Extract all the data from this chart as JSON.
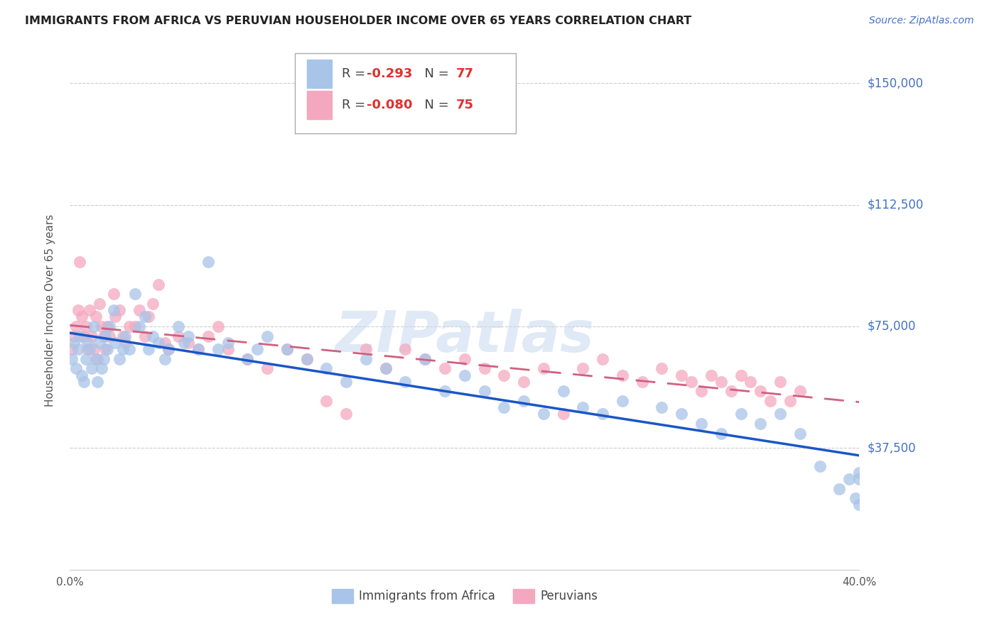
{
  "title": "IMMIGRANTS FROM AFRICA VS PERUVIAN HOUSEHOLDER INCOME OVER 65 YEARS CORRELATION CHART",
  "source": "Source: ZipAtlas.com",
  "ylabel": "Householder Income Over 65 years",
  "xlim": [
    0.0,
    0.4
  ],
  "ylim": [
    0,
    160000
  ],
  "yticks": [
    0,
    37500,
    75000,
    112500,
    150000
  ],
  "ytick_labels": [
    "",
    "$37,500",
    "$75,000",
    "$112,500",
    "$150,000"
  ],
  "xticks": [
    0.0,
    0.05,
    0.1,
    0.15,
    0.2,
    0.25,
    0.3,
    0.35,
    0.4
  ],
  "xtick_labels": [
    "0.0%",
    "",
    "",
    "",
    "",
    "",
    "",
    "",
    "40.0%"
  ],
  "blue_color": "#a8c4e8",
  "pink_color": "#f4a8c0",
  "line_blue": "#1a56c8",
  "line_pink": "#d06080",
  "watermark": "ZIPatlas",
  "africa_x": [
    0.001,
    0.002,
    0.003,
    0.004,
    0.005,
    0.006,
    0.007,
    0.008,
    0.009,
    0.01,
    0.011,
    0.012,
    0.013,
    0.014,
    0.015,
    0.016,
    0.017,
    0.018,
    0.019,
    0.02,
    0.022,
    0.023,
    0.025,
    0.027,
    0.028,
    0.03,
    0.033,
    0.035,
    0.038,
    0.04,
    0.042,
    0.045,
    0.048,
    0.05,
    0.055,
    0.058,
    0.06,
    0.065,
    0.07,
    0.075,
    0.08,
    0.09,
    0.095,
    0.1,
    0.11,
    0.12,
    0.13,
    0.14,
    0.15,
    0.16,
    0.17,
    0.18,
    0.19,
    0.2,
    0.21,
    0.22,
    0.23,
    0.24,
    0.25,
    0.26,
    0.27,
    0.28,
    0.3,
    0.31,
    0.32,
    0.33,
    0.34,
    0.35,
    0.36,
    0.37,
    0.38,
    0.39,
    0.395,
    0.398,
    0.4,
    0.4,
    0.4
  ],
  "africa_y": [
    65000,
    70000,
    62000,
    68000,
    72000,
    60000,
    58000,
    65000,
    70000,
    68000,
    62000,
    75000,
    65000,
    58000,
    70000,
    62000,
    65000,
    72000,
    68000,
    75000,
    80000,
    70000,
    65000,
    68000,
    72000,
    68000,
    85000,
    75000,
    78000,
    68000,
    72000,
    70000,
    65000,
    68000,
    75000,
    70000,
    72000,
    68000,
    95000,
    68000,
    70000,
    65000,
    68000,
    72000,
    68000,
    65000,
    62000,
    58000,
    65000,
    62000,
    58000,
    65000,
    55000,
    60000,
    55000,
    50000,
    52000,
    48000,
    55000,
    50000,
    48000,
    52000,
    50000,
    48000,
    45000,
    42000,
    48000,
    45000,
    48000,
    42000,
    32000,
    25000,
    28000,
    22000,
    20000,
    30000,
    28000
  ],
  "peru_x": [
    0.001,
    0.002,
    0.003,
    0.004,
    0.005,
    0.006,
    0.007,
    0.008,
    0.009,
    0.01,
    0.011,
    0.012,
    0.013,
    0.014,
    0.015,
    0.016,
    0.017,
    0.018,
    0.019,
    0.02,
    0.022,
    0.023,
    0.025,
    0.027,
    0.028,
    0.03,
    0.033,
    0.035,
    0.038,
    0.04,
    0.042,
    0.045,
    0.048,
    0.05,
    0.055,
    0.06,
    0.065,
    0.07,
    0.075,
    0.08,
    0.09,
    0.1,
    0.11,
    0.12,
    0.13,
    0.14,
    0.15,
    0.16,
    0.17,
    0.18,
    0.19,
    0.2,
    0.21,
    0.22,
    0.23,
    0.24,
    0.25,
    0.26,
    0.27,
    0.28,
    0.29,
    0.3,
    0.31,
    0.315,
    0.32,
    0.325,
    0.33,
    0.335,
    0.34,
    0.345,
    0.35,
    0.355,
    0.36,
    0.365,
    0.37
  ],
  "peru_y": [
    68000,
    72000,
    75000,
    80000,
    95000,
    78000,
    72000,
    75000,
    68000,
    80000,
    72000,
    68000,
    78000,
    65000,
    82000,
    75000,
    72000,
    68000,
    75000,
    72000,
    85000,
    78000,
    80000,
    72000,
    70000,
    75000,
    75000,
    80000,
    72000,
    78000,
    82000,
    88000,
    70000,
    68000,
    72000,
    70000,
    68000,
    72000,
    75000,
    68000,
    65000,
    62000,
    68000,
    65000,
    52000,
    48000,
    68000,
    62000,
    68000,
    65000,
    62000,
    65000,
    62000,
    60000,
    58000,
    62000,
    48000,
    62000,
    65000,
    60000,
    58000,
    62000,
    60000,
    58000,
    55000,
    60000,
    58000,
    55000,
    60000,
    58000,
    55000,
    52000,
    58000,
    52000,
    55000
  ],
  "africa_r": -0.293,
  "africa_n": 77,
  "peru_r": -0.08,
  "peru_n": 75,
  "title_fontsize": 11.5,
  "source_fontsize": 10,
  "ytick_fontsize": 12,
  "xtick_fontsize": 11,
  "ylabel_fontsize": 11,
  "legend_fontsize": 12
}
